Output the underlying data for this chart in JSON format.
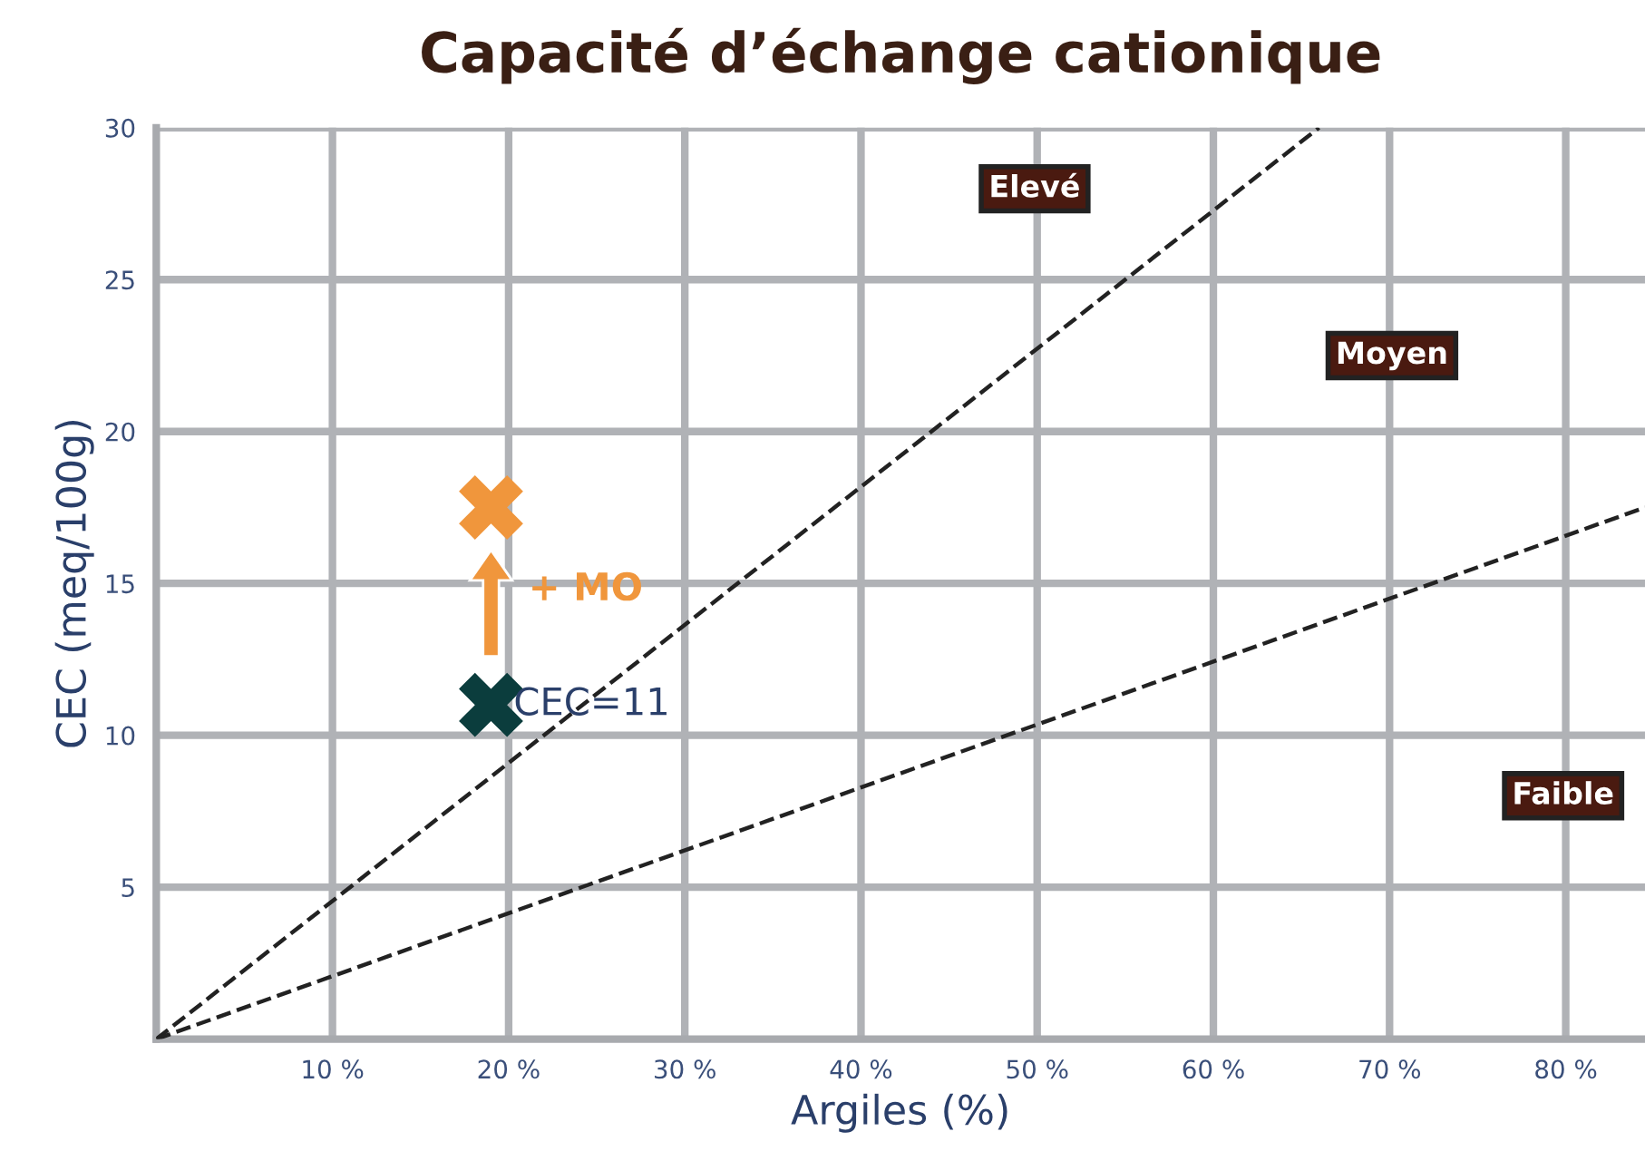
{
  "chart_data": {
    "type": "scatter",
    "title": "Capacité d’échange cationique",
    "xlabel": "Argiles (%)",
    "ylabel": "CEC (meq/100g)",
    "series": [
      {
        "type": "line",
        "color": "#222222",
        "line_style": "dashed",
        "marker": "none",
        "x": [
          0,
          66
        ],
        "values": [
          0,
          30
        ]
      },
      {
        "type": "line",
        "color": "#222222",
        "line_style": "dashed",
        "marker": "none",
        "x": [
          0,
          84.5
        ],
        "values": [
          0,
          17.5
        ]
      },
      {
        "color": "#f0963c",
        "marker": "cross",
        "x": [
          19
        ],
        "values": [
          17.5
        ]
      },
      {
        "color": "#0b3d3d",
        "marker": "cross",
        "x": [
          19
        ],
        "values": [
          11
        ]
      }
    ],
    "annotations": [
      "Elevé",
      "Moyen",
      "Faible",
      "+ MO",
      "CEC=11"
    ],
    "xlim": [
      0,
      84.5
    ],
    "ylim": [
      0,
      30
    ],
    "xticks": [
      {
        "value": 10,
        "label": "10 %"
      },
      {
        "value": 20,
        "label": "20 %"
      },
      {
        "value": 30,
        "label": "30 %"
      },
      {
        "value": 40,
        "label": "40 %"
      },
      {
        "value": 50,
        "label": "50 %"
      },
      {
        "value": 60,
        "label": "60 %"
      },
      {
        "value": 70,
        "label": "70 %"
      },
      {
        "value": 80,
        "label": "80 %"
      }
    ],
    "yticks": [
      5,
      10,
      15,
      20,
      25,
      30
    ],
    "grid": true
  }
}
